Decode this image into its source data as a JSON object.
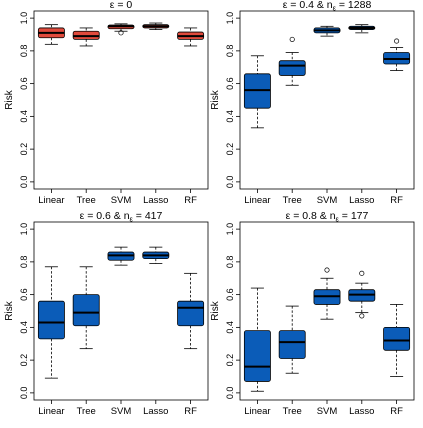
{
  "chart_data": [
    {
      "type": "boxplot",
      "title_parts": [
        "ε = 0",
        ""
      ],
      "ylabel": "Risk",
      "ylim": [
        0,
        1
      ],
      "yticks": [
        "0.0",
        "0.2",
        "0.4",
        "0.6",
        "0.8",
        "1.0"
      ],
      "categories": [
        "Linear",
        "Tree",
        "SVM",
        "Lasso",
        "RF"
      ],
      "box_color": "#e04a3c",
      "boxes": [
        {
          "category": "Linear",
          "whisker_low": 0.84,
          "q1": 0.88,
          "median": 0.91,
          "q3": 0.94,
          "whisker_high": 0.96,
          "outliers": []
        },
        {
          "category": "Tree",
          "whisker_low": 0.83,
          "q1": 0.87,
          "median": 0.89,
          "q3": 0.92,
          "whisker_high": 0.94,
          "outliers": []
        },
        {
          "category": "SVM",
          "whisker_low": 0.92,
          "q1": 0.935,
          "median": 0.95,
          "q3": 0.958,
          "whisker_high": 0.965,
          "outliers": [
            0.91
          ]
        },
        {
          "category": "Lasso",
          "whisker_low": 0.93,
          "q1": 0.94,
          "median": 0.95,
          "q3": 0.96,
          "whisker_high": 0.97,
          "outliers": []
        },
        {
          "category": "RF",
          "whisker_low": 0.83,
          "q1": 0.87,
          "median": 0.89,
          "q3": 0.915,
          "whisker_high": 0.94,
          "outliers": []
        }
      ]
    },
    {
      "type": "boxplot",
      "title_parts": [
        "ε = 0.4 & n",
        "ε",
        " = 1288"
      ],
      "ylabel": "Risk",
      "ylim": [
        0,
        1
      ],
      "yticks": [
        "0.0",
        "0.2",
        "0.4",
        "0.6",
        "0.8",
        "1.0"
      ],
      "categories": [
        "Linear",
        "Tree",
        "SVM",
        "Lasso",
        "RF"
      ],
      "box_color": "#0b5cb8",
      "boxes": [
        {
          "category": "Linear",
          "whisker_low": 0.33,
          "q1": 0.45,
          "median": 0.56,
          "q3": 0.66,
          "whisker_high": 0.77,
          "outliers": []
        },
        {
          "category": "Tree",
          "whisker_low": 0.59,
          "q1": 0.65,
          "median": 0.71,
          "q3": 0.74,
          "whisker_high": 0.79,
          "outliers": [
            0.87
          ]
        },
        {
          "category": "SVM",
          "whisker_low": 0.89,
          "q1": 0.91,
          "median": 0.925,
          "q3": 0.94,
          "whisker_high": 0.95,
          "outliers": []
        },
        {
          "category": "Lasso",
          "whisker_low": 0.91,
          "q1": 0.93,
          "median": 0.94,
          "q3": 0.95,
          "whisker_high": 0.96,
          "outliers": []
        },
        {
          "category": "RF",
          "whisker_low": 0.68,
          "q1": 0.72,
          "median": 0.75,
          "q3": 0.79,
          "whisker_high": 0.82,
          "outliers": [
            0.86
          ]
        }
      ]
    },
    {
      "type": "boxplot",
      "title_parts": [
        "ε = 0.6 & n",
        "ε",
        " = 417"
      ],
      "ylabel": "Risk",
      "ylim": [
        0,
        1
      ],
      "yticks": [
        "0.0",
        "0.2",
        "0.4",
        "0.6",
        "0.8",
        "1.0"
      ],
      "categories": [
        "Linear",
        "Tree",
        "SVM",
        "Lasso",
        "RF"
      ],
      "box_color": "#0b5cb8",
      "boxes": [
        {
          "category": "Linear",
          "whisker_low": 0.09,
          "q1": 0.33,
          "median": 0.43,
          "q3": 0.56,
          "whisker_high": 0.77,
          "outliers": []
        },
        {
          "category": "Tree",
          "whisker_low": 0.27,
          "q1": 0.41,
          "median": 0.49,
          "q3": 0.6,
          "whisker_high": 0.77,
          "outliers": []
        },
        {
          "category": "SVM",
          "whisker_low": 0.78,
          "q1": 0.81,
          "median": 0.84,
          "q3": 0.86,
          "whisker_high": 0.89,
          "outliers": []
        },
        {
          "category": "Lasso",
          "whisker_low": 0.79,
          "q1": 0.82,
          "median": 0.84,
          "q3": 0.86,
          "whisker_high": 0.89,
          "outliers": []
        },
        {
          "category": "RF",
          "whisker_low": 0.27,
          "q1": 0.41,
          "median": 0.52,
          "q3": 0.56,
          "whisker_high": 0.73,
          "outliers": []
        }
      ]
    },
    {
      "type": "boxplot",
      "title_parts": [
        "ε = 0.8 & n",
        "ε",
        " = 177"
      ],
      "ylabel": "Risk",
      "ylim": [
        0,
        1
      ],
      "yticks": [
        "0.0",
        "0.2",
        "0.4",
        "0.6",
        "0.8",
        "1.0"
      ],
      "categories": [
        "Linear",
        "Tree",
        "SVM",
        "Lasso",
        "RF"
      ],
      "box_color": "#0b5cb8",
      "boxes": [
        {
          "category": "Linear",
          "whisker_low": 0.01,
          "q1": 0.07,
          "median": 0.16,
          "q3": 0.38,
          "whisker_high": 0.64,
          "outliers": []
        },
        {
          "category": "Tree",
          "whisker_low": 0.12,
          "q1": 0.21,
          "median": 0.31,
          "q3": 0.38,
          "whisker_high": 0.53,
          "outliers": []
        },
        {
          "category": "SVM",
          "whisker_low": 0.45,
          "q1": 0.54,
          "median": 0.59,
          "q3": 0.63,
          "whisker_high": 0.7,
          "outliers": [
            0.75
          ]
        },
        {
          "category": "Lasso",
          "whisker_low": 0.49,
          "q1": 0.56,
          "median": 0.6,
          "q3": 0.63,
          "whisker_high": 0.67,
          "outliers": [
            0.73,
            0.47
          ]
        },
        {
          "category": "RF",
          "whisker_low": 0.1,
          "q1": 0.26,
          "median": 0.32,
          "q3": 0.4,
          "whisker_high": 0.54,
          "outliers": []
        }
      ]
    }
  ]
}
